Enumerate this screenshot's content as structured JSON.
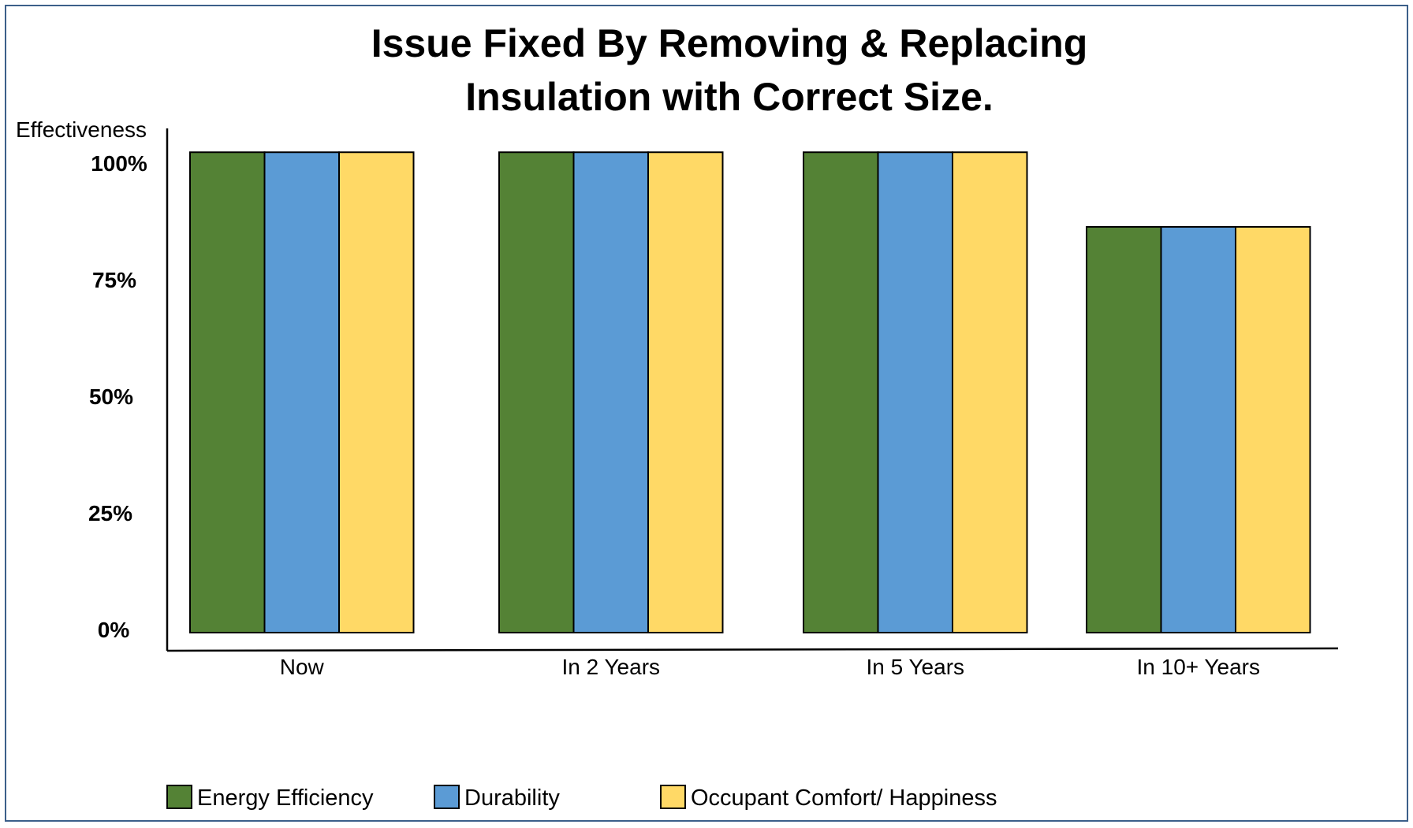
{
  "chart_data": {
    "type": "bar",
    "title": [
      "Issue Fixed By Removing & Replacing",
      "Insulation with Correct Size."
    ],
    "ylabel": "Effectiveness",
    "xlabel": "",
    "ylim": [
      0,
      100
    ],
    "yticks": [
      0,
      25,
      50,
      75,
      100
    ],
    "ytick_labels": [
      "0%",
      "25%",
      "50%",
      "75%",
      "100%"
    ],
    "categories": [
      "Now",
      "In 2 Years",
      "In 5 Years",
      "In 10+ Years"
    ],
    "series": [
      {
        "name": "Energy Efficiency",
        "color": "#548235",
        "values": [
          103,
          103,
          103,
          87
        ]
      },
      {
        "name": "Durability",
        "color": "#5b9bd5",
        "values": [
          103,
          103,
          103,
          87
        ]
      },
      {
        "name": "Occupant Comfort/ Happiness",
        "color": "#ffd966",
        "values": [
          103,
          103,
          103,
          87
        ]
      }
    ],
    "grid": false,
    "legend": "bottom"
  }
}
